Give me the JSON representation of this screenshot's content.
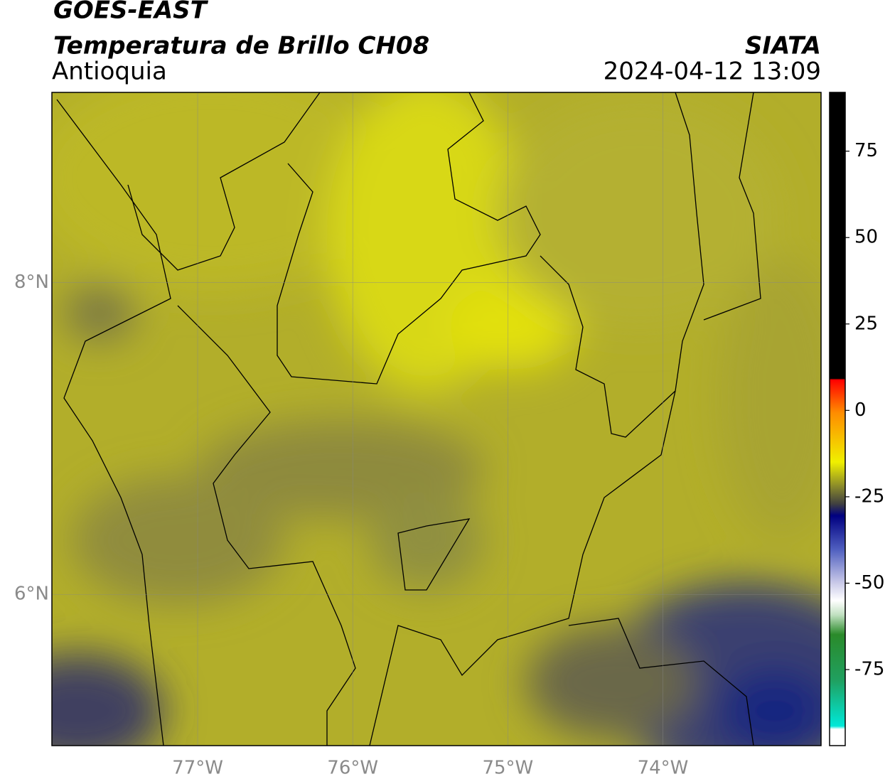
{
  "chart_data": {
    "type": "map",
    "title": "GOES-EAST",
    "subtitle": "Temperatura de Brillo CH08",
    "region": "Antioquia",
    "source": "SIATA",
    "timestamp": "2024-04-12 13:09",
    "xlim": [
      -77.94,
      -72.98
    ],
    "ylim": [
      5.03,
      9.22
    ],
    "xticks": [
      {
        "value": -77,
        "label": "77°W"
      },
      {
        "value": -76,
        "label": "76°W"
      },
      {
        "value": -75,
        "label": "75°W"
      },
      {
        "value": -74,
        "label": "74°W"
      }
    ],
    "yticks": [
      {
        "value": 6,
        "label": "6°N"
      },
      {
        "value": 8,
        "label": "8°N"
      }
    ],
    "grid": true,
    "colorbar": {
      "lim": [
        -97,
        92
      ],
      "ticks": [
        -75,
        -50,
        -25,
        0,
        25,
        50,
        75
      ]
    }
  }
}
